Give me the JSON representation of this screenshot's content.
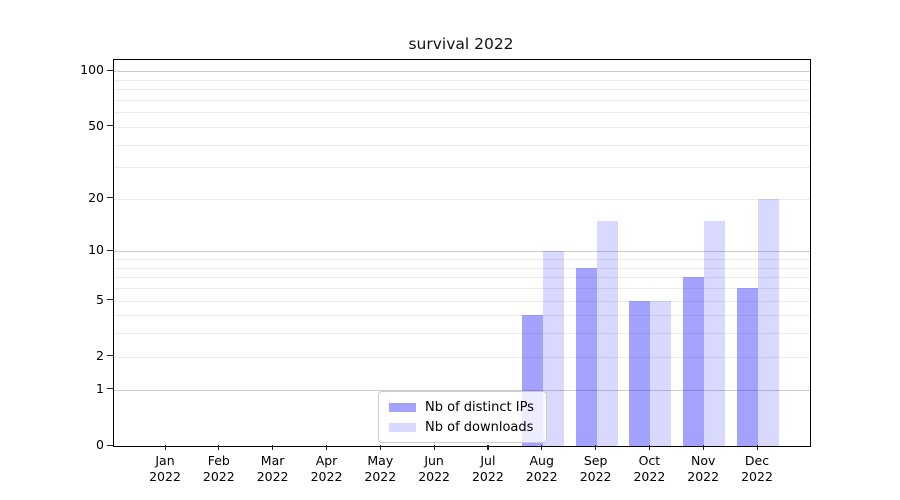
{
  "title": "survival 2022",
  "chart_data": {
    "type": "bar",
    "title": "survival 2022",
    "categories": [
      "Jan 2022",
      "Feb 2022",
      "Mar 2022",
      "Apr 2022",
      "May 2022",
      "Jun 2022",
      "Jul 2022",
      "Aug 2022",
      "Sep 2022",
      "Oct 2022",
      "Nov 2022",
      "Dec 2022"
    ],
    "series": [
      {
        "name": "Nb of distinct IPs",
        "color": "#0000ff",
        "alpha": 0.36,
        "values": [
          0,
          0,
          0,
          0,
          0,
          0,
          0,
          4,
          8,
          5,
          7,
          6
        ]
      },
      {
        "name": "Nb of downloads",
        "color": "#0000ff",
        "alpha": 0.15,
        "values": [
          0,
          0,
          0,
          0,
          0,
          0,
          0,
          10,
          15,
          5,
          15,
          20
        ]
      }
    ],
    "yscale": "log(value+1)",
    "ylim": [
      0,
      115
    ],
    "y_ticks": [
      0,
      1,
      2,
      5,
      10,
      20,
      50,
      100
    ],
    "y_major_gridlines": [
      1,
      10,
      100
    ],
    "y_minor_gridlines": [
      3,
      4,
      6,
      7,
      8,
      9,
      30,
      40,
      60,
      70,
      80,
      90
    ],
    "xlabel": "",
    "ylabel": "",
    "grid": "horizontal",
    "legend_position": "lower center, inside axes"
  },
  "colors": {
    "grid_major": "#cdcdcd",
    "grid_minor": "#ececec",
    "spine": "#000000",
    "background": "#ffffff"
  }
}
